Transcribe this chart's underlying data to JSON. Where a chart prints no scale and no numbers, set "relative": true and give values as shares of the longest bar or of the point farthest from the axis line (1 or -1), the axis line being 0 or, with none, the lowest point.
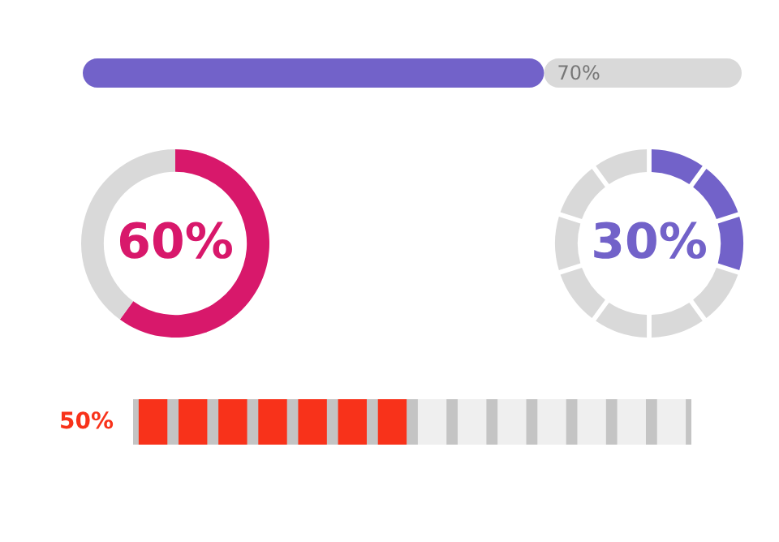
{
  "chart_data": [
    {
      "type": "bar",
      "orientation": "horizontal",
      "stacked": true,
      "categories": [
        null
      ],
      "xlim": [
        0,
        100
      ],
      "tick_labels": false,
      "series": [
        {
          "color": "#7262c9",
          "values": [
            70
          ],
          "value_labels": [
            "70%"
          ]
        },
        {
          "color": "#d9d9d9",
          "values": [
            30
          ]
        }
      ]
    },
    {
      "type": "donut",
      "categories": [
        null,
        null
      ],
      "values": [
        60,
        40
      ],
      "colors": [
        "#d8186b",
        "#d9d9d9"
      ],
      "annotations": [
        "60%"
      ]
    },
    {
      "type": "donut",
      "categories": [
        null,
        null,
        null,
        null,
        null,
        null,
        null,
        null,
        null,
        null
      ],
      "values": [
        10,
        10,
        10,
        10,
        10,
        10,
        10,
        10,
        10,
        10
      ],
      "colors": [
        "#7262c9",
        "#7262c9",
        "#7262c9",
        "#d9d9d9",
        "#d9d9d9",
        "#d9d9d9",
        "#d9d9d9",
        "#d9d9d9",
        "#d9d9d9",
        "#d9d9d9"
      ],
      "annotations": [
        "30%"
      ]
    },
    {
      "type": "bar",
      "relative": true,
      "categories": [
        null,
        null,
        null,
        null,
        null,
        null,
        null,
        null,
        null,
        null,
        null,
        null,
        null,
        null
      ],
      "values": [
        1,
        1,
        1,
        1,
        1,
        1,
        1,
        1,
        1,
        1,
        1,
        1,
        1,
        1
      ],
      "colors": [
        "#f8321a",
        "#f8321a",
        "#f8321a",
        "#f8321a",
        "#f8321a",
        "#f8321a",
        "#f8321a",
        "#efefef",
        "#efefef",
        "#efefef",
        "#efefef",
        "#efefef",
        "#efefef",
        "#efefef"
      ],
      "annotations": [
        "50%"
      ],
      "tick_labels": false
    }
  ]
}
